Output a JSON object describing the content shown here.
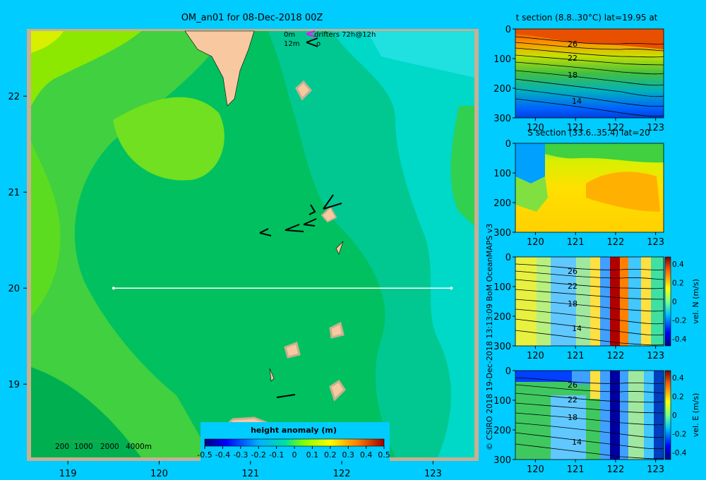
{
  "chart_data": [
    {
      "type": "heatmap",
      "title": "OM_an01 for 08-Dec-2018 00Z",
      "x_ticks": [
        119,
        120,
        121,
        122,
        123
      ],
      "y_ticks": [
        19,
        20,
        21,
        22
      ],
      "xlim": [
        118.55,
        123.5
      ],
      "ylim": [
        18.2,
        22.7
      ],
      "legend_lines": [
        "0m",
        "drifters 72h@12h",
        "12m",
        "o"
      ],
      "depth_legend": [
        "200",
        "1000",
        "2000",
        "4000m"
      ],
      "section_line": {
        "lat": 20,
        "lon_from": 119.5,
        "lon_to": 123.2
      },
      "colorbar": {
        "label": "height anomaly (m)",
        "ticks": [
          "-0.5",
          "-0.4",
          "-0.3",
          "-0.2",
          "-0.1",
          "0",
          "0.1",
          "0.2",
          "0.3",
          "0.4",
          "0.5"
        ],
        "range": [
          -0.5,
          0.5
        ]
      }
    },
    {
      "type": "heatmap",
      "title": "t section (8.8..30°C) lat=19.95 at",
      "x_ticks": [
        120,
        121,
        122,
        123
      ],
      "y_ticks": [
        0,
        100,
        200,
        300
      ],
      "xlim": [
        119.5,
        123.2
      ],
      "ylim": [
        300,
        0
      ],
      "contour_labels": [
        "26",
        "22",
        "18",
        "14"
      ]
    },
    {
      "type": "heatmap",
      "title": "S section (33.6..35.4) lat=20",
      "x_ticks": [
        120,
        121,
        122,
        123
      ],
      "y_ticks": [
        0,
        100,
        200,
        300
      ],
      "xlim": [
        119.5,
        123.2
      ],
      "ylim": [
        300,
        0
      ]
    },
    {
      "type": "heatmap",
      "x_ticks": [
        120,
        121,
        122,
        123
      ],
      "y_ticks": [
        0,
        100,
        200,
        300
      ],
      "xlim": [
        119.5,
        123.2
      ],
      "ylim": [
        300,
        0
      ],
      "contour_labels": [
        "26",
        "22",
        "18",
        "14"
      ],
      "colorbar": {
        "label": "vel. N (m/s)",
        "ticks": [
          "0.4",
          "0.2",
          "0",
          "-0.2",
          "-0.4"
        ],
        "range": [
          -0.4,
          0.4
        ]
      }
    },
    {
      "type": "heatmap",
      "x_ticks": [
        120,
        121,
        122,
        123
      ],
      "y_ticks": [
        0,
        100,
        200,
        300
      ],
      "xlim": [
        119.5,
        123.2
      ],
      "ylim": [
        300,
        0
      ],
      "contour_labels": [
        "26",
        "22",
        "18",
        "14"
      ],
      "colorbar": {
        "label": "vel. E (m/s)",
        "ticks": [
          "0.4",
          "0.2",
          "0",
          "-0.2",
          "-0.4"
        ],
        "range": [
          -0.4,
          0.4
        ]
      }
    }
  ],
  "credit": "© CSIRO 2018   19-Dec-2018 13:13:09 BoM OceanMAPS v3",
  "colors": {
    "background": "#00ccff",
    "land": "#f8c8a0",
    "frame": "#c8b090",
    "section_line": "#ffffff"
  }
}
